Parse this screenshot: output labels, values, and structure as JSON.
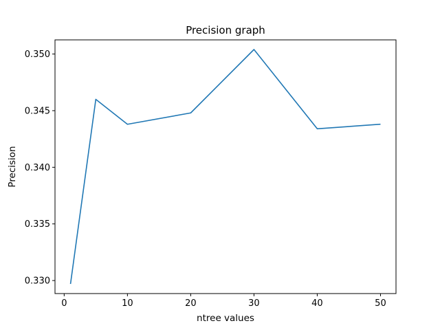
{
  "chart_data": {
    "type": "line",
    "title": "Precision graph",
    "xlabel": "ntree values",
    "ylabel": "Precision",
    "xlim": [
      -1.45,
      52.45
    ],
    "ylim": [
      0.32885,
      0.35125
    ],
    "xticks": [
      0,
      10,
      20,
      30,
      40,
      50
    ],
    "yticks": [
      0.33,
      0.335,
      0.34,
      0.345,
      0.35
    ],
    "grid": false,
    "series": [
      {
        "color": "#1f77b4",
        "x": [
          1,
          5,
          10,
          20,
          30,
          40,
          50
        ],
        "y": [
          0.3297,
          0.346,
          0.3438,
          0.3448,
          0.3504,
          0.3434,
          0.3438
        ]
      }
    ]
  }
}
